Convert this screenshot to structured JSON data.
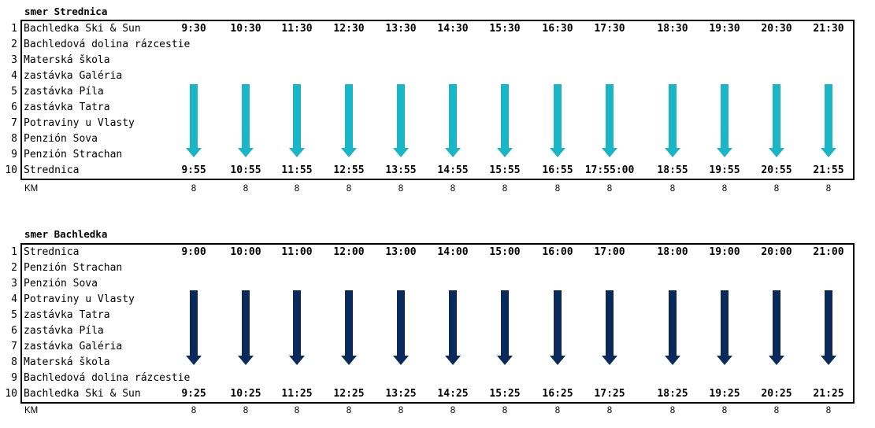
{
  "colors": {
    "arrow_down_strednica": "#1bb5c8",
    "arrow_down_bachledka": "#0b2a5c"
  },
  "km_label": "KM",
  "sections": [
    {
      "title": "smer Strednica",
      "stops": [
        "Bachledka Ski & Sun",
        "Bachledová dolina rázcestie",
        "Materská škola",
        "zastávka Galéria",
        "zastávka Píla",
        "zastávka Tatra",
        "Potraviny u Vlasty",
        "Penzión Sova",
        "Penzión Strachan",
        "Strednica"
      ],
      "departures": [
        "9:30",
        "10:30",
        "11:30",
        "12:30",
        "13:30",
        "14:30",
        "15:30",
        "16:30",
        "17:30",
        "18:30",
        "19:30",
        "20:30",
        "21:30"
      ],
      "arrivals": [
        "9:55",
        "10:55",
        "11:55",
        "12:55",
        "13:55",
        "14:55",
        "15:55",
        "16:55",
        "17:55:00",
        "18:55",
        "19:55",
        "20:55",
        "21:55"
      ],
      "km": [
        "8",
        "8",
        "8",
        "8",
        "8",
        "8",
        "8",
        "8",
        "8",
        "8",
        "8",
        "8",
        "8"
      ]
    },
    {
      "title": "smer Bachledka",
      "stops": [
        "Strednica",
        "Penzión Strachan",
        "Penzión Sova",
        "Potraviny u Vlasty",
        "zastávka Tatra",
        "zastávka Píla",
        "zastávka Galéria",
        "Materská škola",
        "Bachledová dolina rázcestie",
        "Bachledka Ski & Sun"
      ],
      "departures": [
        "9:00",
        "10:00",
        "11:00",
        "12:00",
        "13:00",
        "14:00",
        "15:00",
        "16:00",
        "17:00",
        "18:00",
        "19:00",
        "20:00",
        "21:00"
      ],
      "arrivals": [
        "9:25",
        "10:25",
        "11:25",
        "12:25",
        "13:25",
        "14:25",
        "15:25",
        "16:25",
        "17:25",
        "18:25",
        "19:25",
        "20:25",
        "21:25"
      ],
      "km": [
        "8",
        "8",
        "8",
        "8",
        "8",
        "8",
        "8",
        "8",
        "8",
        "8",
        "8",
        "8",
        "8"
      ]
    }
  ]
}
